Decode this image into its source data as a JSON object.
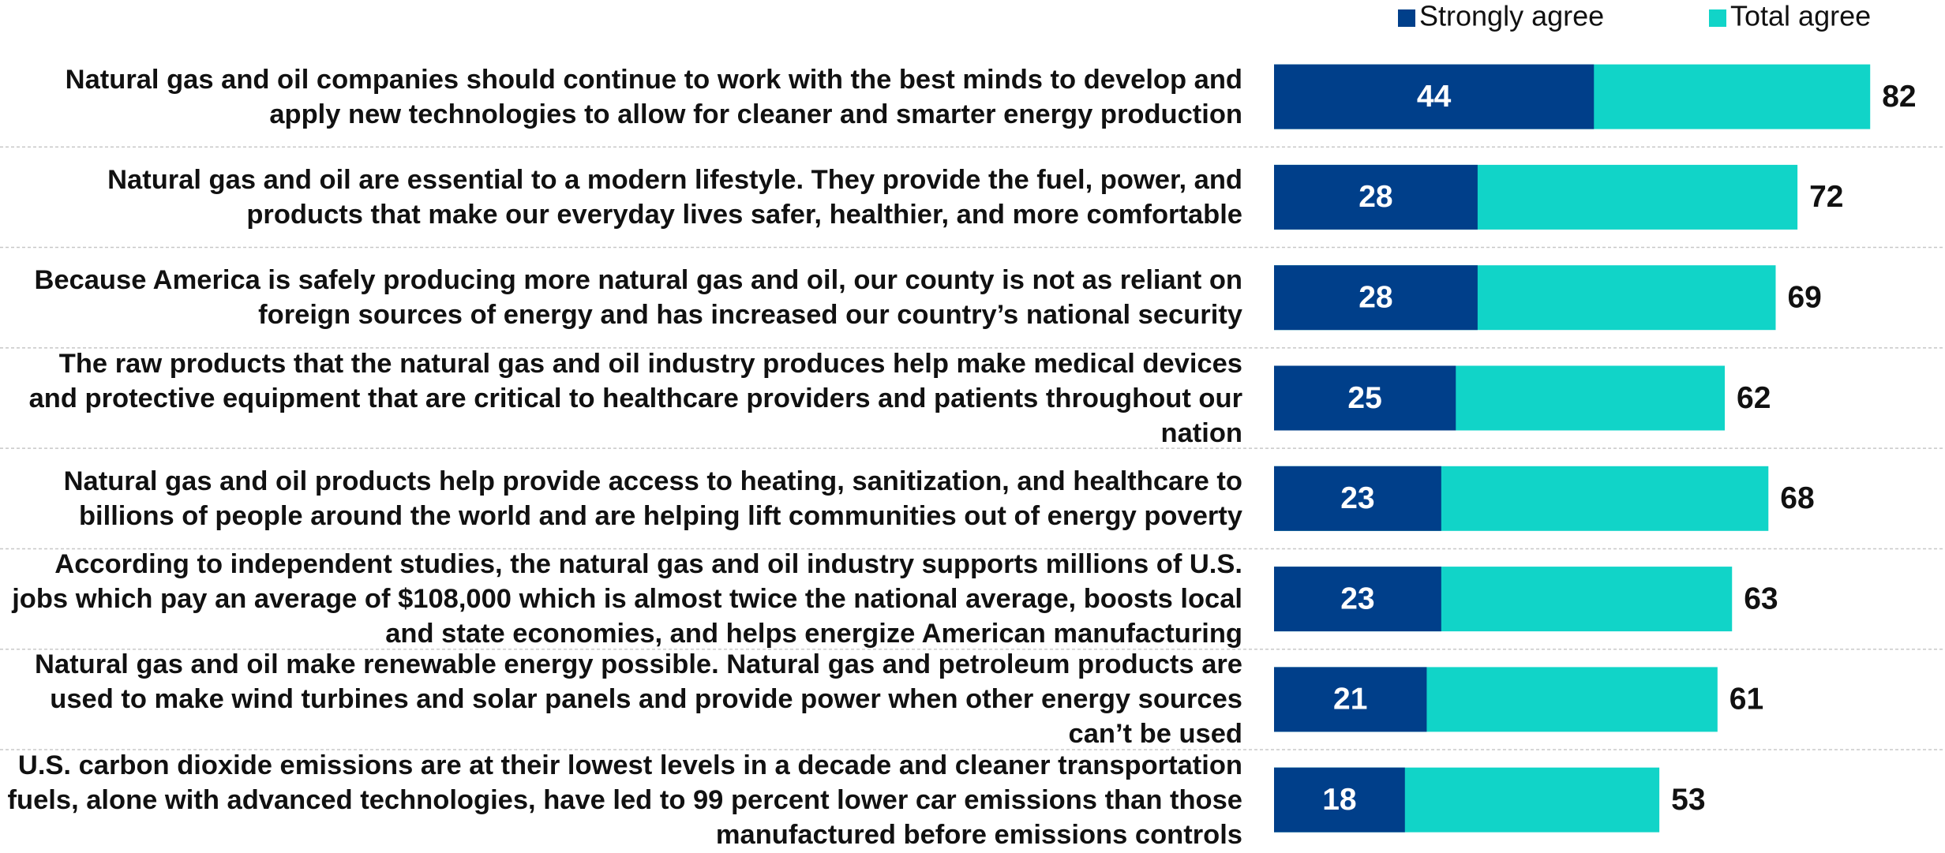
{
  "chart_data": {
    "type": "bar",
    "orientation": "horizontal",
    "overlap": true,
    "categories": [
      "Natural gas and oil companies should continue to work with the best minds to develop and apply new technologies to allow for cleaner and smarter energy production",
      "Natural gas and oil are essential to a modern lifestyle. They provide the fuel, power, and products that make our everyday lives safer, healthier, and more comfortable",
      "Because America is safely producing more natural gas and oil, our county is not as reliant on foreign sources of energy and has increased our country’s national security",
      "The raw products that the natural gas and oil industry produces help make medical devices and protective equipment that are critical to healthcare providers and patients throughout our nation",
      "Natural gas and oil products help provide access to heating, sanitization, and healthcare to billions of people around the world and are helping lift communities out of energy poverty",
      "According to independent studies, the natural gas and oil industry supports millions of U.S. jobs which pay an average of $108,000 which is almost twice the national average, boosts local and state economies, and helps energize American manufacturing",
      "Natural gas and oil make renewable energy possible. Natural gas and petroleum products are used to make wind turbines and solar panels and provide power when other energy sources can’t be used",
      "U.S. carbon dioxide emissions are at their lowest levels in a decade and cleaner transportation fuels, alone with advanced technologies, have led to 99 percent lower car emissions than those manufactured before emissions controls"
    ],
    "series": [
      {
        "name": "Total agree",
        "color": "#11d4c8",
        "values": [
          82,
          72,
          69,
          62,
          68,
          63,
          61,
          53
        ]
      },
      {
        "name": "Strongly agree",
        "color": "#003f8a",
        "values": [
          44,
          28,
          28,
          25,
          23,
          23,
          21,
          18
        ]
      }
    ],
    "legend": "top-right"
  }
}
